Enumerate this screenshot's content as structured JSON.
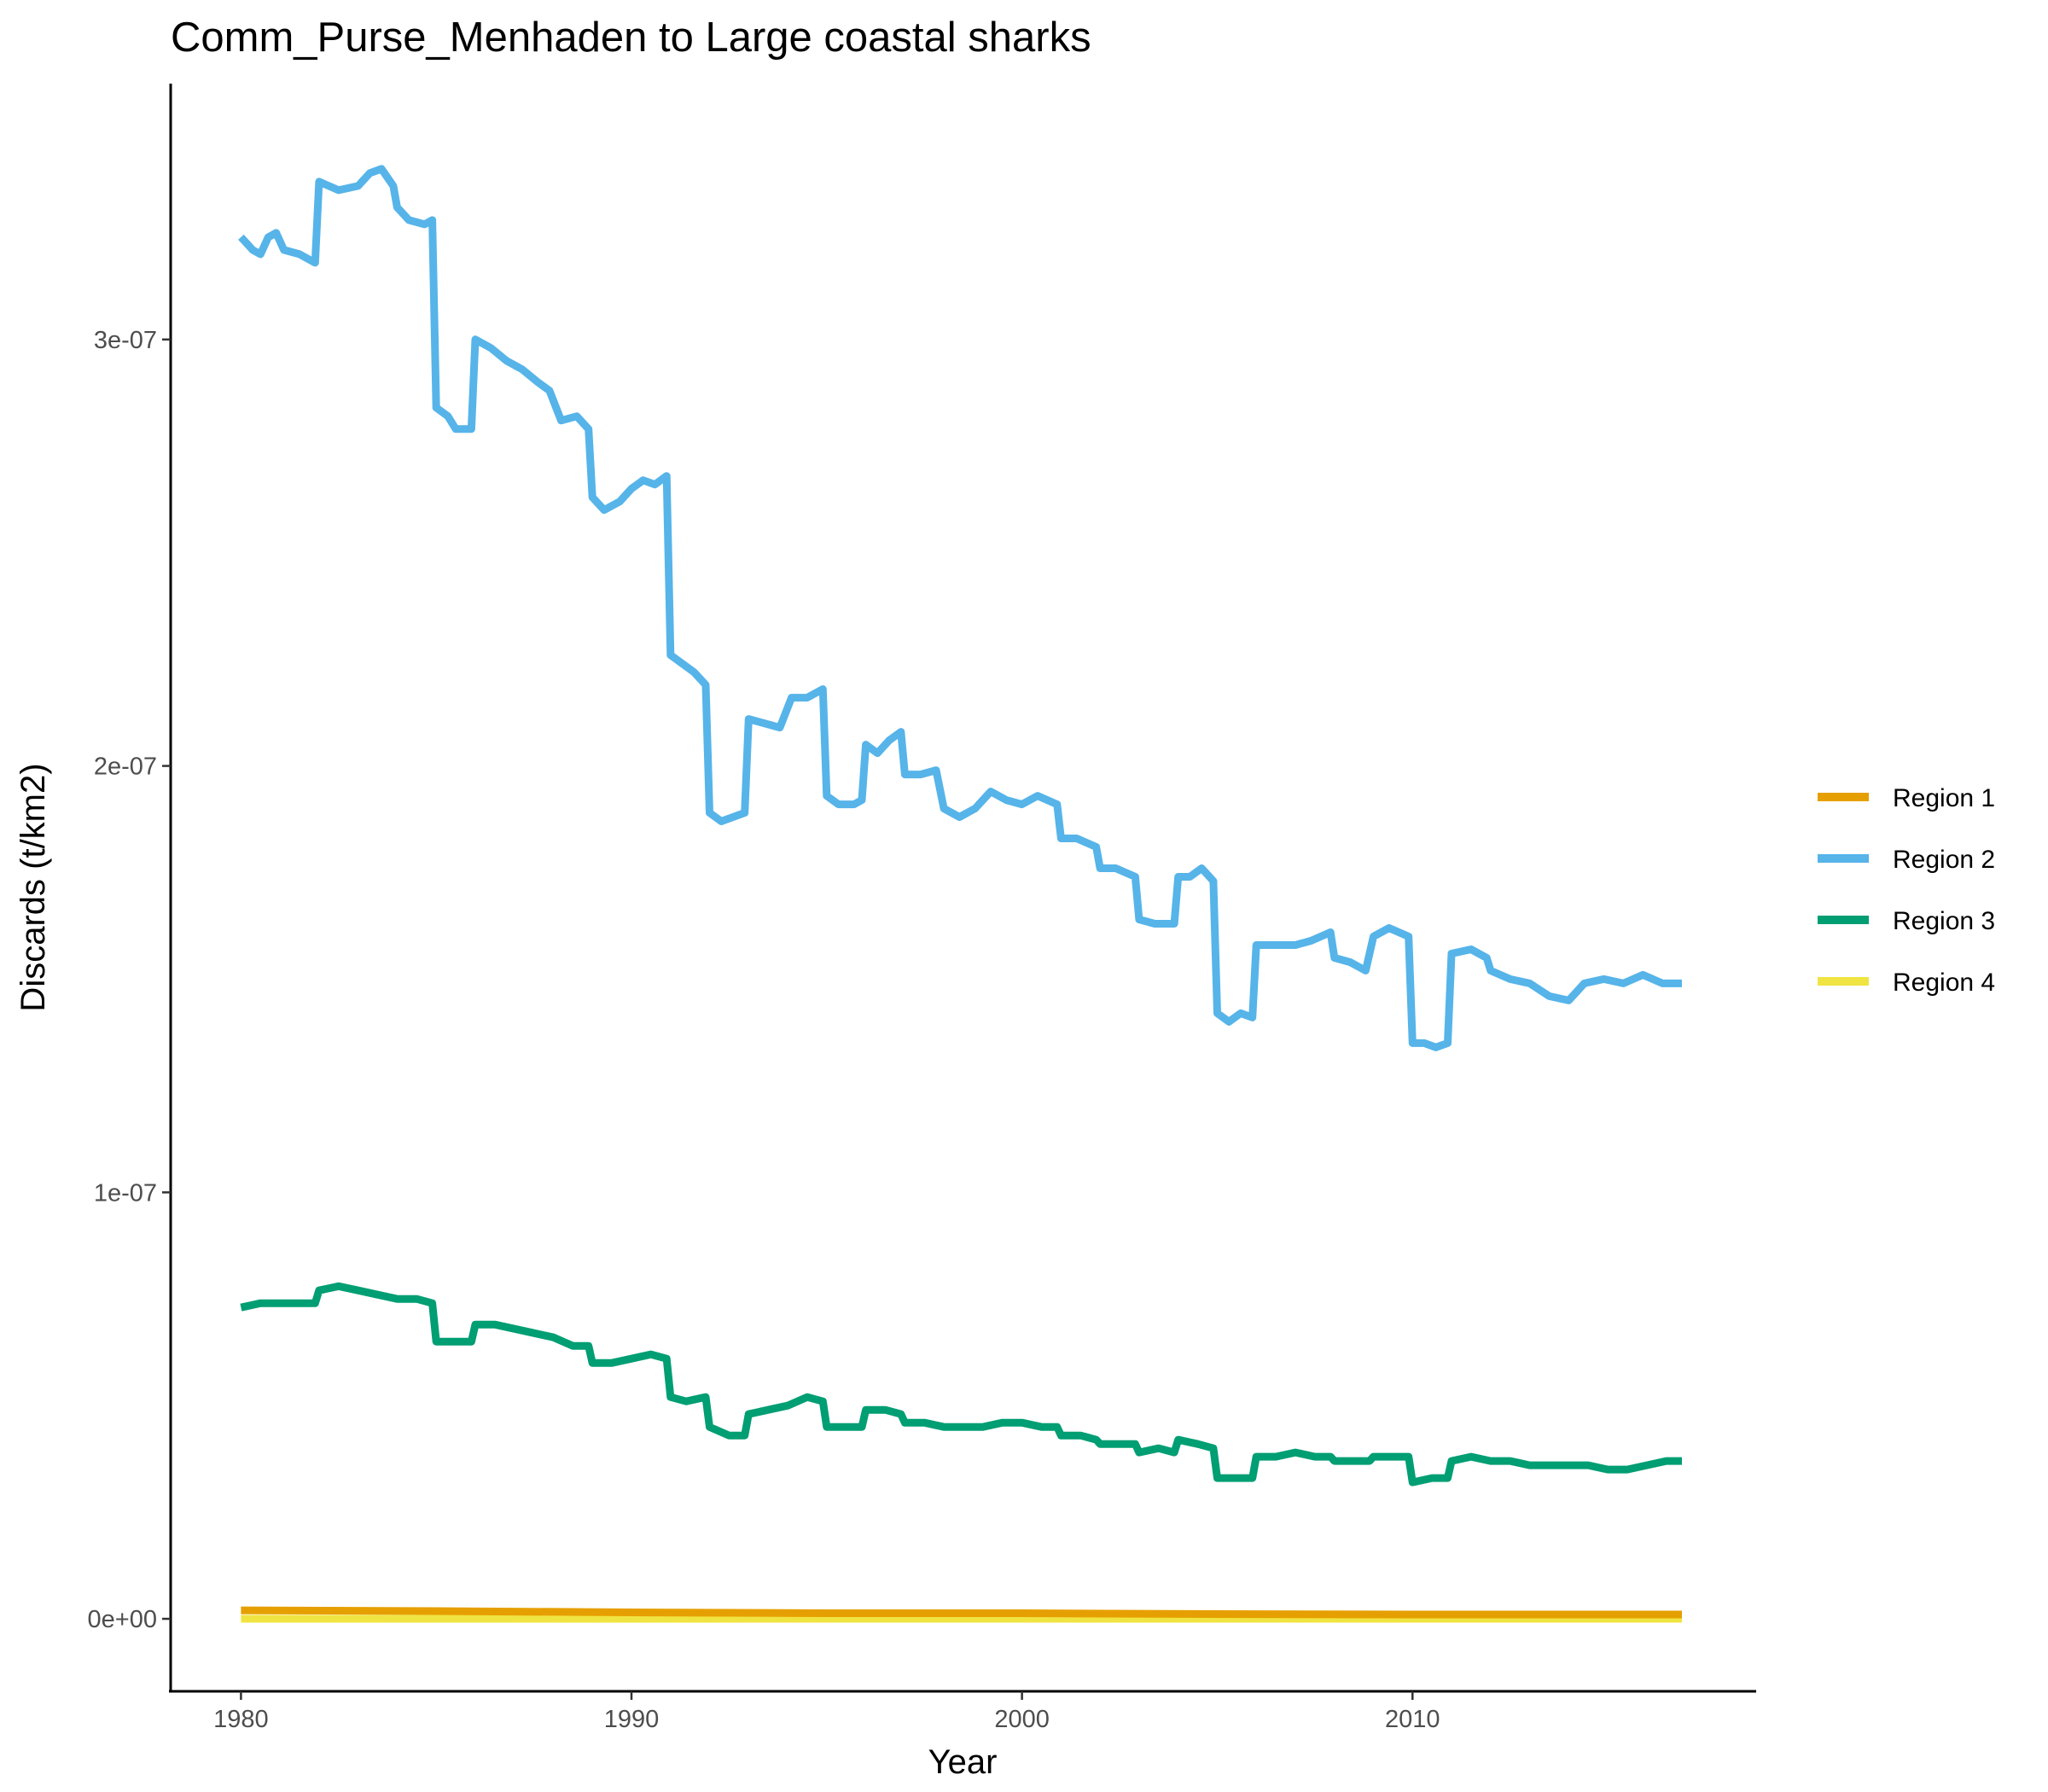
{
  "chart_data": {
    "type": "line",
    "title": "Comm_Purse_Menhaden to Large coastal sharks",
    "xlabel": "Year",
    "ylabel": "Discards (t/km2)",
    "xlim": [
      1978.2,
      2018.8
    ],
    "ylim": [
      -1.7e-08,
      3.6e-07
    ],
    "x_ticks": [
      1980,
      1990,
      2000,
      2010
    ],
    "x_tick_labels": [
      "1980",
      "1990",
      "2000",
      "2010"
    ],
    "y_ticks": [
      0,
      1e-07,
      2e-07,
      3e-07
    ],
    "y_tick_labels": [
      "0e+00",
      "1e-07",
      "2e-07",
      "3e-07"
    ],
    "grid": false,
    "legend_position": "right",
    "series": [
      {
        "name": "Region 1",
        "color": "#E69F00",
        "points": [
          [
            1980.0,
            2e-09
          ],
          [
            1985.0,
            1.8e-09
          ],
          [
            1990.0,
            1.5e-09
          ],
          [
            1995.0,
            1.3e-09
          ],
          [
            2000.0,
            1.3e-09
          ],
          [
            2005.0,
            1.1e-09
          ],
          [
            2010.0,
            1e-09
          ],
          [
            2016.9,
            1e-09
          ]
        ]
      },
      {
        "name": "Region 2",
        "color": "#56B4E9",
        "points": [
          [
            1980.0,
            3.24e-07
          ],
          [
            1980.3,
            3.21e-07
          ],
          [
            1980.5,
            3.2e-07
          ],
          [
            1980.7,
            3.24e-07
          ],
          [
            1980.9,
            3.25e-07
          ],
          [
            1981.1,
            3.21e-07
          ],
          [
            1981.5,
            3.2e-07
          ],
          [
            1981.9,
            3.18e-07
          ],
          [
            1982.0,
            3.37e-07
          ],
          [
            1982.5,
            3.35e-07
          ],
          [
            1983.0,
            3.36e-07
          ],
          [
            1983.3,
            3.39e-07
          ],
          [
            1983.6,
            3.4e-07
          ],
          [
            1983.9,
            3.36e-07
          ],
          [
            1984.0,
            3.31e-07
          ],
          [
            1984.3,
            3.28e-07
          ],
          [
            1984.7,
            3.27e-07
          ],
          [
            1984.9,
            3.28e-07
          ],
          [
            1985.0,
            2.84e-07
          ],
          [
            1985.3,
            2.82e-07
          ],
          [
            1985.5,
            2.79e-07
          ],
          [
            1985.9,
            2.79e-07
          ],
          [
            1986.0,
            3e-07
          ],
          [
            1986.4,
            2.98e-07
          ],
          [
            1986.8,
            2.95e-07
          ],
          [
            1987.2,
            2.93e-07
          ],
          [
            1987.6,
            2.9e-07
          ],
          [
            1987.9,
            2.88e-07
          ],
          [
            1988.2,
            2.81e-07
          ],
          [
            1988.6,
            2.82e-07
          ],
          [
            1988.9,
            2.79e-07
          ],
          [
            1989.0,
            2.63e-07
          ],
          [
            1989.3,
            2.6e-07
          ],
          [
            1989.7,
            2.62e-07
          ],
          [
            1990.0,
            2.65e-07
          ],
          [
            1990.3,
            2.67e-07
          ],
          [
            1990.6,
            2.66e-07
          ],
          [
            1990.9,
            2.68e-07
          ],
          [
            1991.0,
            2.26e-07
          ],
          [
            1991.3,
            2.24e-07
          ],
          [
            1991.6,
            2.22e-07
          ],
          [
            1991.9,
            2.19e-07
          ],
          [
            1992.0,
            1.89e-07
          ],
          [
            1992.3,
            1.87e-07
          ],
          [
            1992.6,
            1.88e-07
          ],
          [
            1992.9,
            1.89e-07
          ],
          [
            1993.0,
            2.11e-07
          ],
          [
            1993.4,
            2.1e-07
          ],
          [
            1993.8,
            2.09e-07
          ],
          [
            1994.1,
            2.16e-07
          ],
          [
            1994.5,
            2.16e-07
          ],
          [
            1994.9,
            2.18e-07
          ],
          [
            1995.0,
            1.93e-07
          ],
          [
            1995.3,
            1.91e-07
          ],
          [
            1995.7,
            1.91e-07
          ],
          [
            1995.9,
            1.92e-07
          ],
          [
            1996.0,
            2.05e-07
          ],
          [
            1996.3,
            2.03e-07
          ],
          [
            1996.6,
            2.06e-07
          ],
          [
            1996.9,
            2.08e-07
          ],
          [
            1997.0,
            1.98e-07
          ],
          [
            1997.4,
            1.98e-07
          ],
          [
            1997.8,
            1.99e-07
          ],
          [
            1998.0,
            1.9e-07
          ],
          [
            1998.4,
            1.88e-07
          ],
          [
            1998.8,
            1.9e-07
          ],
          [
            1999.2,
            1.94e-07
          ],
          [
            1999.6,
            1.92e-07
          ],
          [
            2000.0,
            1.91e-07
          ],
          [
            2000.4,
            1.93e-07
          ],
          [
            2000.9,
            1.91e-07
          ],
          [
            2001.0,
            1.83e-07
          ],
          [
            2001.4,
            1.83e-07
          ],
          [
            2001.9,
            1.81e-07
          ],
          [
            2002.0,
            1.76e-07
          ],
          [
            2002.4,
            1.76e-07
          ],
          [
            2002.9,
            1.74e-07
          ],
          [
            2003.0,
            1.64e-07
          ],
          [
            2003.4,
            1.63e-07
          ],
          [
            2003.9,
            1.63e-07
          ],
          [
            2004.0,
            1.74e-07
          ],
          [
            2004.3,
            1.74e-07
          ],
          [
            2004.6,
            1.76e-07
          ],
          [
            2004.9,
            1.73e-07
          ],
          [
            2005.0,
            1.42e-07
          ],
          [
            2005.3,
            1.4e-07
          ],
          [
            2005.6,
            1.42e-07
          ],
          [
            2005.9,
            1.41e-07
          ],
          [
            2006.0,
            1.58e-07
          ],
          [
            2006.5,
            1.58e-07
          ],
          [
            2007.0,
            1.58e-07
          ],
          [
            2007.4,
            1.59e-07
          ],
          [
            2007.9,
            1.61e-07
          ],
          [
            2008.0,
            1.55e-07
          ],
          [
            2008.4,
            1.54e-07
          ],
          [
            2008.8,
            1.52e-07
          ],
          [
            2009.0,
            1.6e-07
          ],
          [
            2009.4,
            1.62e-07
          ],
          [
            2009.9,
            1.6e-07
          ],
          [
            2010.0,
            1.35e-07
          ],
          [
            2010.3,
            1.35e-07
          ],
          [
            2010.6,
            1.34e-07
          ],
          [
            2010.9,
            1.35e-07
          ],
          [
            2011.0,
            1.56e-07
          ],
          [
            2011.5,
            1.57e-07
          ],
          [
            2011.9,
            1.55e-07
          ],
          [
            2012.0,
            1.52e-07
          ],
          [
            2012.5,
            1.5e-07
          ],
          [
            2013.0,
            1.49e-07
          ],
          [
            2013.5,
            1.46e-07
          ],
          [
            2014.0,
            1.45e-07
          ],
          [
            2014.4,
            1.49e-07
          ],
          [
            2014.9,
            1.5e-07
          ],
          [
            2015.4,
            1.49e-07
          ],
          [
            2015.9,
            1.51e-07
          ],
          [
            2016.4,
            1.49e-07
          ],
          [
            2016.9,
            1.49e-07
          ]
        ]
      },
      {
        "name": "Region 3",
        "color": "#009E73",
        "points": [
          [
            1980.0,
            7.3e-08
          ],
          [
            1980.5,
            7.4e-08
          ],
          [
            1981.0,
            7.4e-08
          ],
          [
            1981.5,
            7.4e-08
          ],
          [
            1981.9,
            7.4e-08
          ],
          [
            1982.0,
            7.7e-08
          ],
          [
            1982.5,
            7.8e-08
          ],
          [
            1983.0,
            7.7e-08
          ],
          [
            1983.5,
            7.6e-08
          ],
          [
            1984.0,
            7.5e-08
          ],
          [
            1984.5,
            7.5e-08
          ],
          [
            1984.9,
            7.4e-08
          ],
          [
            1985.0,
            6.5e-08
          ],
          [
            1985.5,
            6.5e-08
          ],
          [
            1985.9,
            6.5e-08
          ],
          [
            1986.0,
            6.9e-08
          ],
          [
            1986.5,
            6.9e-08
          ],
          [
            1987.0,
            6.8e-08
          ],
          [
            1987.5,
            6.7e-08
          ],
          [
            1988.0,
            6.6e-08
          ],
          [
            1988.5,
            6.4e-08
          ],
          [
            1988.9,
            6.4e-08
          ],
          [
            1989.0,
            6e-08
          ],
          [
            1989.5,
            6e-08
          ],
          [
            1990.0,
            6.1e-08
          ],
          [
            1990.5,
            6.2e-08
          ],
          [
            1990.9,
            6.1e-08
          ],
          [
            1991.0,
            5.2e-08
          ],
          [
            1991.4,
            5.1e-08
          ],
          [
            1991.9,
            5.2e-08
          ],
          [
            1992.0,
            4.5e-08
          ],
          [
            1992.5,
            4.3e-08
          ],
          [
            1992.9,
            4.3e-08
          ],
          [
            1993.0,
            4.8e-08
          ],
          [
            1993.5,
            4.9e-08
          ],
          [
            1994.0,
            5e-08
          ],
          [
            1994.5,
            5.2e-08
          ],
          [
            1994.9,
            5.1e-08
          ],
          [
            1995.0,
            4.5e-08
          ],
          [
            1995.5,
            4.5e-08
          ],
          [
            1995.9,
            4.5e-08
          ],
          [
            1996.0,
            4.9e-08
          ],
          [
            1996.5,
            4.9e-08
          ],
          [
            1996.9,
            4.8e-08
          ],
          [
            1997.0,
            4.6e-08
          ],
          [
            1997.5,
            4.6e-08
          ],
          [
            1998.0,
            4.5e-08
          ],
          [
            1998.5,
            4.5e-08
          ],
          [
            1999.0,
            4.5e-08
          ],
          [
            1999.5,
            4.6e-08
          ],
          [
            2000.0,
            4.6e-08
          ],
          [
            2000.5,
            4.5e-08
          ],
          [
            2000.9,
            4.5e-08
          ],
          [
            2001.0,
            4.3e-08
          ],
          [
            2001.5,
            4.3e-08
          ],
          [
            2001.9,
            4.2e-08
          ],
          [
            2002.0,
            4.1e-08
          ],
          [
            2002.5,
            4.1e-08
          ],
          [
            2002.9,
            4.1e-08
          ],
          [
            2003.0,
            3.9e-08
          ],
          [
            2003.5,
            4e-08
          ],
          [
            2003.9,
            3.9e-08
          ],
          [
            2004.0,
            4.2e-08
          ],
          [
            2004.5,
            4.1e-08
          ],
          [
            2004.9,
            4e-08
          ],
          [
            2005.0,
            3.3e-08
          ],
          [
            2005.5,
            3.3e-08
          ],
          [
            2005.9,
            3.3e-08
          ],
          [
            2006.0,
            3.8e-08
          ],
          [
            2006.5,
            3.8e-08
          ],
          [
            2007.0,
            3.9e-08
          ],
          [
            2007.5,
            3.8e-08
          ],
          [
            2007.9,
            3.8e-08
          ],
          [
            2008.0,
            3.7e-08
          ],
          [
            2008.5,
            3.7e-08
          ],
          [
            2008.9,
            3.7e-08
          ],
          [
            2009.0,
            3.8e-08
          ],
          [
            2009.5,
            3.8e-08
          ],
          [
            2009.9,
            3.8e-08
          ],
          [
            2010.0,
            3.2e-08
          ],
          [
            2010.5,
            3.3e-08
          ],
          [
            2010.9,
            3.3e-08
          ],
          [
            2011.0,
            3.7e-08
          ],
          [
            2011.5,
            3.8e-08
          ],
          [
            2012.0,
            3.7e-08
          ],
          [
            2012.5,
            3.7e-08
          ],
          [
            2013.0,
            3.6e-08
          ],
          [
            2013.5,
            3.6e-08
          ],
          [
            2014.0,
            3.6e-08
          ],
          [
            2014.5,
            3.6e-08
          ],
          [
            2015.0,
            3.5e-08
          ],
          [
            2015.5,
            3.5e-08
          ],
          [
            2016.0,
            3.6e-08
          ],
          [
            2016.5,
            3.7e-08
          ],
          [
            2016.9,
            3.7e-08
          ]
        ]
      },
      {
        "name": "Region 4",
        "color": "#F0E442",
        "points": [
          [
            1980.0,
            0.0
          ],
          [
            1990.0,
            0.0
          ],
          [
            2000.0,
            0.0
          ],
          [
            2010.0,
            0.0
          ],
          [
            2016.9,
            0.0
          ]
        ]
      }
    ]
  }
}
